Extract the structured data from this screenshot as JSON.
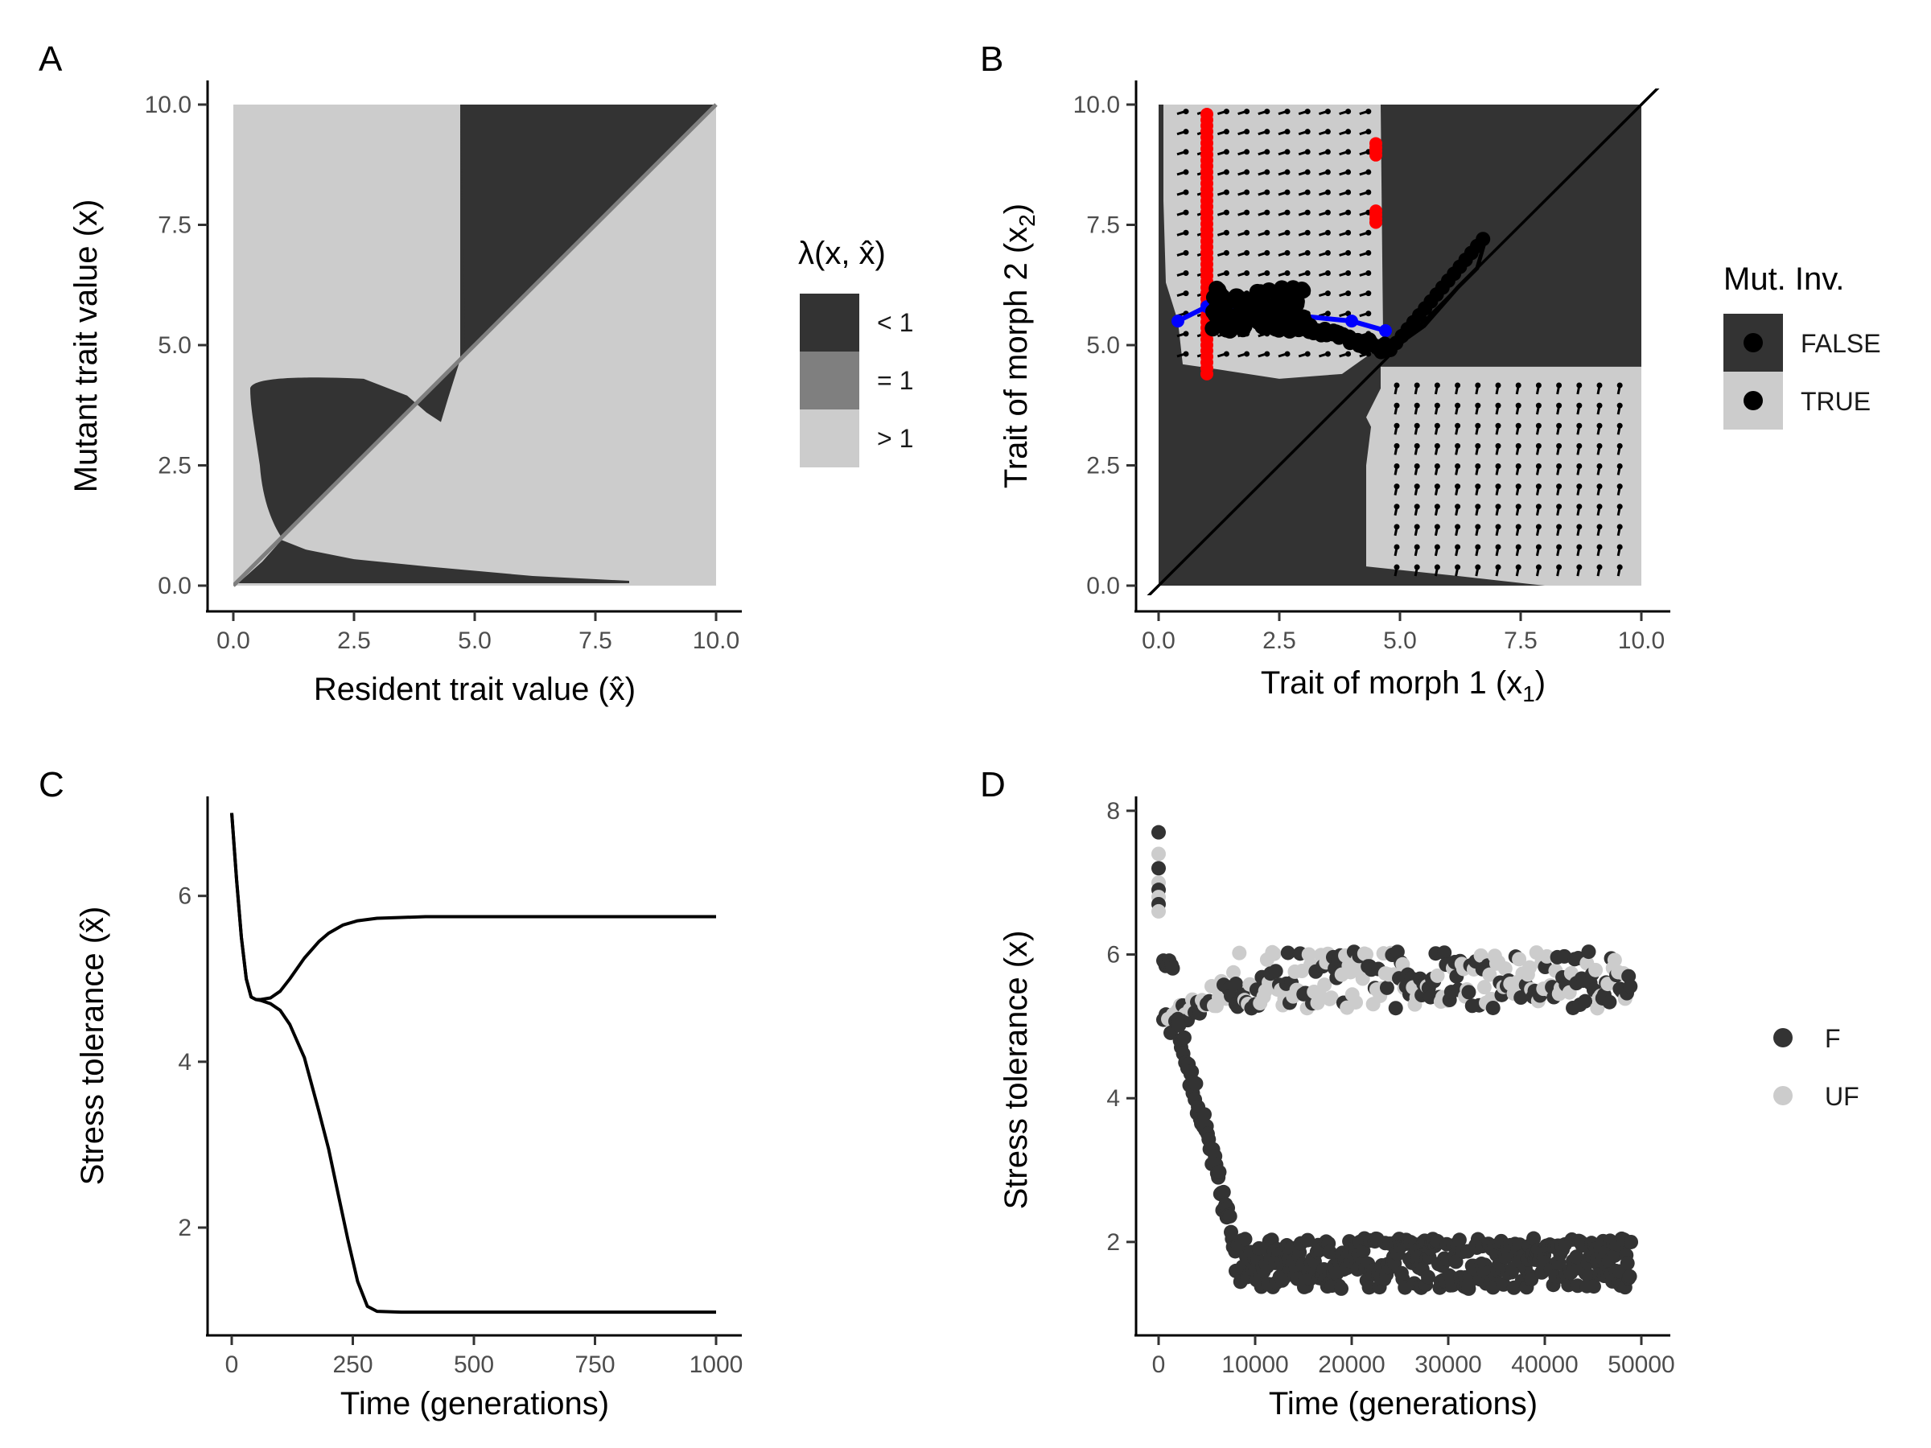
{
  "chart_data": [
    {
      "panel": "A",
      "type": "heatmap",
      "xlabel_pre": "Resident trait value (",
      "xlabel_sym": "x̂",
      "xlabel_post": ")",
      "ylabel": "Mutant trait value (x)",
      "xlim": [
        0,
        10
      ],
      "ylim": [
        0,
        10
      ],
      "xticks": [
        "0.0",
        "2.5",
        "5.0",
        "7.5",
        "10.0"
      ],
      "yticks": [
        "0.0",
        "2.5",
        "5.0",
        "7.5",
        "10.0"
      ],
      "xtick_values": [
        0,
        2.5,
        5,
        7.5,
        10
      ],
      "ytick_values": [
        0,
        2.5,
        5,
        7.5,
        10
      ],
      "legend": {
        "title": "λ(x, x̂)",
        "entries": [
          {
            "label": "< 1",
            "color": "#333333"
          },
          {
            "label": "= 1",
            "color": "#7f7f7f"
          },
          {
            "label": "> 1",
            "color": "#cccccc"
          }
        ]
      },
      "colors": {
        "below": "#333333",
        "equal": "#7f7f7f",
        "above": "#cccccc"
      }
    },
    {
      "panel": "B",
      "type": "scatter",
      "xlabel_pre": "Trait of morph 1 (x",
      "xlabel_sub": "1",
      "xlabel_post": ")",
      "ylabel_pre": "Trait of morph 2 (x",
      "ylabel_sub": "2",
      "ylabel_post": ")",
      "xlim": [
        0,
        10
      ],
      "ylim": [
        0,
        10
      ],
      "xticks": [
        "0.0",
        "2.5",
        "5.0",
        "7.5",
        "10.0"
      ],
      "yticks": [
        "0.0",
        "2.5",
        "5.0",
        "7.5",
        "10.0"
      ],
      "xtick_values": [
        0,
        2.5,
        5,
        7.5,
        10
      ],
      "ytick_values": [
        0,
        2.5,
        5,
        7.5,
        10
      ],
      "legend": {
        "title": "Mut. Inv.",
        "entries": [
          {
            "label": "FALSE",
            "color": "#333333"
          },
          {
            "label": "TRUE",
            "color": "#cccccc"
          }
        ]
      },
      "trajectories": {
        "red_vertical": {
          "x": 1.0,
          "y_from": 4.4,
          "y_to": 9.8,
          "color": "#ff0000"
        },
        "red_right": [
          {
            "x": 4.5,
            "y": 9.1
          },
          {
            "x": 4.5,
            "y": 7.7
          }
        ],
        "blue_path": {
          "x": [
            0.4,
            1.0,
            2.0,
            3.0,
            4.0,
            4.7
          ],
          "y": [
            5.5,
            5.8,
            5.7,
            5.6,
            5.5,
            5.3
          ],
          "color": "#0000ff"
        },
        "black_path": {
          "x": [
            1.2,
            2.0,
            3.0,
            4.0,
            4.8,
            5.5,
            6.2,
            6.6,
            6.8
          ],
          "y": [
            5.8,
            5.6,
            5.5,
            5.2,
            4.9,
            5.4,
            6.2,
            6.6,
            7.3
          ],
          "color": "#000000"
        }
      }
    },
    {
      "panel": "C",
      "type": "line",
      "xlabel": "Time (generations)",
      "ylabel_pre": "Stress tolerance (",
      "ylabel_sym": "x̂",
      "ylabel_post": ")",
      "xlim": [
        0,
        1000
      ],
      "ylim": [
        0.7,
        7.2
      ],
      "xticks": [
        "0",
        "250",
        "500",
        "750",
        "1000"
      ],
      "yticks": [
        "2",
        "4",
        "6"
      ],
      "xtick_values": [
        0,
        250,
        500,
        750,
        1000
      ],
      "ytick_values": [
        2,
        4,
        6
      ],
      "series": [
        {
          "x": [
            0,
            10,
            20,
            30,
            40,
            50,
            60,
            80,
            100,
            120,
            150,
            180,
            200,
            230,
            260,
            300,
            350,
            400,
            500,
            600,
            800,
            1000
          ],
          "y": [
            7.0,
            6.2,
            5.5,
            5.0,
            4.78,
            4.75,
            4.75,
            4.77,
            4.85,
            5.0,
            5.25,
            5.45,
            5.55,
            5.65,
            5.7,
            5.73,
            5.74,
            5.75,
            5.75,
            5.75,
            5.75,
            5.75
          ]
        },
        {
          "x": [
            0,
            10,
            20,
            30,
            40,
            50,
            60,
            80,
            100,
            120,
            150,
            180,
            200,
            220,
            240,
            260,
            280,
            300,
            350,
            400,
            500,
            600,
            800,
            1000
          ],
          "y": [
            7.0,
            6.2,
            5.5,
            5.0,
            4.78,
            4.75,
            4.74,
            4.7,
            4.62,
            4.45,
            4.05,
            3.4,
            2.95,
            2.4,
            1.85,
            1.35,
            1.05,
            0.99,
            0.98,
            0.98,
            0.98,
            0.98,
            0.98,
            0.98
          ]
        }
      ]
    },
    {
      "panel": "D",
      "type": "scatter",
      "xlabel": "Time (generations)",
      "ylabel": "Stress tolerance (x)",
      "xlim": [
        -2000,
        51000
      ],
      "ylim": [
        0.7,
        8.2
      ],
      "xticks": [
        "0",
        "10000",
        "20000",
        "30000",
        "40000",
        "50000"
      ],
      "yticks": [
        "2",
        "4",
        "6",
        "8"
      ],
      "xtick_values": [
        0,
        10000,
        20000,
        30000,
        40000,
        50000
      ],
      "ytick_values": [
        2,
        4,
        6,
        8
      ],
      "legend": {
        "entries": [
          {
            "label": "F",
            "color": "#333333"
          },
          {
            "label": "UF",
            "color": "#cccccc"
          }
        ]
      },
      "upper_branch": {
        "x_start": 1000,
        "x_end": 49000,
        "y_center": 5.65,
        "y_spread": 0.4,
        "start_y": 5.0,
        "settle_x": 8000
      },
      "lower_branch": {
        "x_start": 2000,
        "x_end": 49000,
        "y_center": 1.7,
        "y_spread": 0.35,
        "settle_x": 8000
      },
      "initial": {
        "x": 0,
        "y_values": [
          7.7,
          7.4,
          7.2,
          7.0,
          6.9,
          6.8,
          6.7,
          6.6
        ]
      }
    }
  ]
}
